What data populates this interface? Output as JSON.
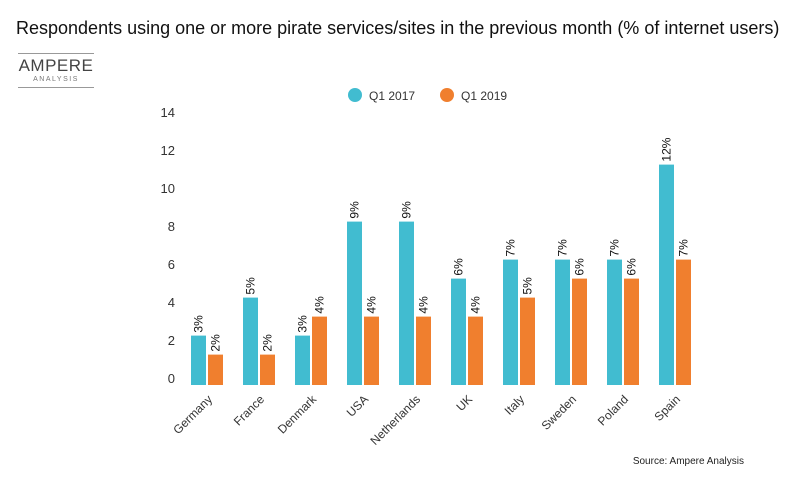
{
  "title": "Respondents using one or more pirate services/sites in the previous month (% of internet users)",
  "logo": {
    "name": "AMPERE",
    "sub": "ANALYSIS"
  },
  "source": "Source: Ampere Analysis",
  "colors": {
    "q1_2017": "#41bcd0",
    "q1_2019": "#f07f2e"
  },
  "chart_data": {
    "type": "bar",
    "title": "Respondents using one or more pirate services/sites in the previous month (% of internet users)",
    "xlabel": "",
    "ylabel": "",
    "ylim": [
      0,
      14
    ],
    "yticks": [
      0,
      2,
      4,
      6,
      8,
      10,
      12,
      14
    ],
    "legend_position": "top-center",
    "grid": false,
    "categories": [
      "Germany",
      "France",
      "Denmark",
      "USA",
      "Netherlands",
      "UK",
      "Italy",
      "Sweden",
      "Poland",
      "Spain"
    ],
    "series": [
      {
        "name": "Q1 2017",
        "values": [
          2.6,
          4.6,
          2.6,
          8.6,
          8.6,
          5.6,
          6.6,
          6.6,
          6.6,
          11.6
        ],
        "labels": [
          "3%",
          "5%",
          "3%",
          "9%",
          "9%",
          "6%",
          "7%",
          "7%",
          "7%",
          "12%"
        ]
      },
      {
        "name": "Q1 2019",
        "values": [
          1.6,
          1.6,
          3.6,
          3.6,
          3.6,
          3.6,
          4.6,
          5.6,
          5.6,
          6.6
        ],
        "labels": [
          "2%",
          "2%",
          "4%",
          "4%",
          "4%",
          "4%",
          "5%",
          "6%",
          "6%",
          "7%"
        ]
      }
    ]
  }
}
